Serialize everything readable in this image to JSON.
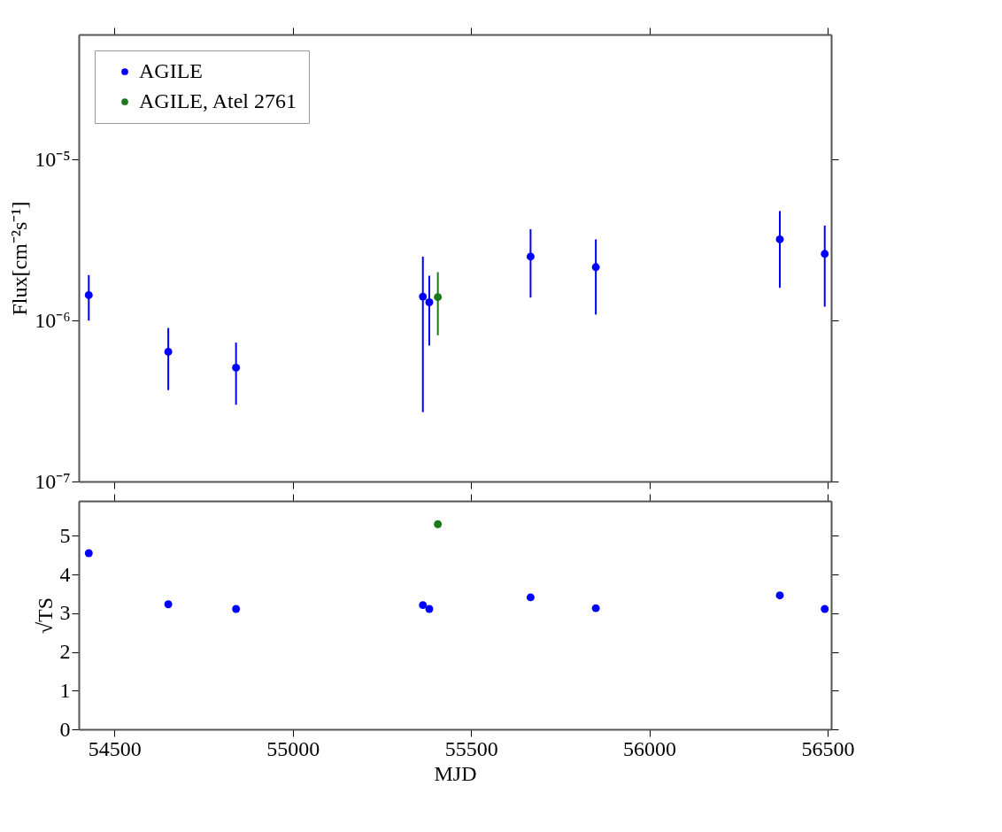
{
  "chart_data": [
    {
      "type": "scatter",
      "ylabel": "Flux[cm⁻²s⁻¹]",
      "log": "y",
      "xlim": [
        54400,
        56510
      ],
      "xticks": [
        54500,
        55000,
        55500,
        56000,
        56500
      ],
      "ylim": [
        1e-07,
        6e-05
      ],
      "yticks": [
        {
          "value": 1e-07,
          "label": "10⁻⁷"
        },
        {
          "value": 1e-06,
          "label": "10⁻⁶"
        },
        {
          "value": 1e-05,
          "label": "10⁻⁵"
        }
      ],
      "tick_labels": "y",
      "legend": "top left",
      "marker": "circle",
      "grid": false,
      "series": [
        {
          "name": "AGILE",
          "color": "#0000ff",
          "x": [
            54428,
            54651,
            54841,
            55365,
            55383,
            55667,
            55850,
            56366,
            56492
          ],
          "values": [
            1.44e-06,
            6.4e-07,
            5.1e-07,
            1.41e-06,
            1.3e-06,
            2.5e-06,
            2.15e-06,
            3.2e-06,
            2.6e-06
          ],
          "errors": [
            [
              1e-06,
              1.92e-06
            ],
            [
              3.7e-07,
              9e-07
            ],
            [
              3e-07,
              7.3e-07
            ],
            [
              2.7e-07,
              2.5e-06
            ],
            [
              7e-07,
              1.9e-06
            ],
            [
              1.39e-06,
              3.7e-06
            ],
            [
              1.09e-06,
              3.2e-06
            ],
            [
              1.6e-06,
              4.8e-06
            ],
            [
              1.22e-06,
              3.9e-06
            ]
          ]
        },
        {
          "name": "AGILE, Atel 2761",
          "color": "#1a7a1a",
          "x": [
            55407
          ],
          "values": [
            1.4e-06
          ],
          "errors": [
            [
              8.1e-07,
              2e-06
            ]
          ]
        }
      ]
    },
    {
      "type": "scatter",
      "xlabel": "MJD",
      "ylabel": "√TS",
      "xlim": [
        54400,
        56510
      ],
      "xticks": [
        54500,
        55000,
        55500,
        56000,
        56500
      ],
      "ylim": [
        0,
        5.9
      ],
      "yticks": [
        0,
        1,
        2,
        3,
        4,
        5
      ],
      "marker": "circle",
      "grid": false,
      "legend": false,
      "series": [
        {
          "color": "#0000ff",
          "x": [
            54428,
            54651,
            54841,
            55365,
            55383,
            55667,
            55850,
            56366,
            56492
          ],
          "values": [
            4.55,
            3.23,
            3.11,
            3.21,
            3.11,
            3.41,
            3.13,
            3.46,
            3.11
          ]
        },
        {
          "color": "#1a7a1a",
          "x": [
            55407
          ],
          "values": [
            5.3
          ]
        }
      ]
    }
  ]
}
